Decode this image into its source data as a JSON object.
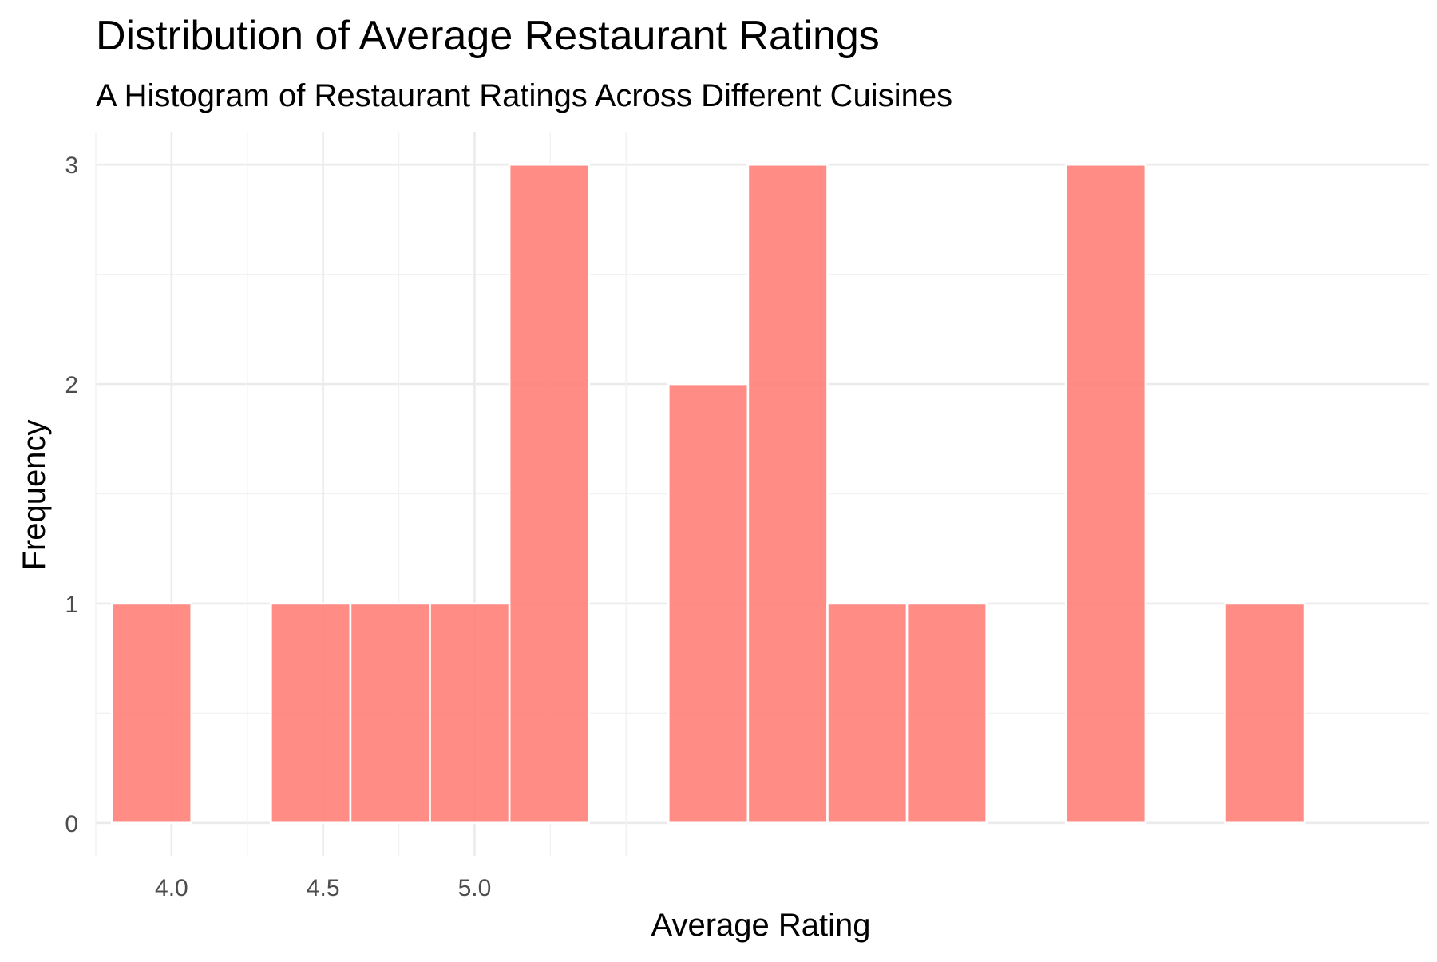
{
  "chart_data": {
    "type": "bar",
    "subtype": "histogram",
    "title": "Distribution of Average Restaurant Ratings",
    "subtitle": "A Histogram of Restaurant Ratings Across Different Cuisines",
    "xlabel": "Average Rating",
    "ylabel": "Frequency",
    "bar_color": "#FF7F78",
    "bin_width": 0.2624,
    "bins": [
      {
        "start": 3.8031,
        "end": 4.0655,
        "count": 1
      },
      {
        "start": 4.0655,
        "end": 4.3279,
        "count": 0
      },
      {
        "start": 4.3279,
        "end": 4.5903,
        "count": 1
      },
      {
        "start": 4.5903,
        "end": 4.8527,
        "count": 1
      },
      {
        "start": 4.8527,
        "end": 5.1151,
        "count": 1
      },
      {
        "start": 5.1151,
        "end": 5.3775,
        "count": 3
      },
      {
        "start": 5.3775,
        "end": 5.6399,
        "count": 0
      },
      {
        "start": 5.6399,
        "end": 5.9023,
        "count": 2
      },
      {
        "start": 5.9023,
        "end": 6.1647,
        "count": 3
      },
      {
        "start": 6.1647,
        "end": 6.4271,
        "count": 1
      },
      {
        "start": 6.4271,
        "end": 6.6895,
        "count": 1
      },
      {
        "start": 6.6895,
        "end": 6.9519,
        "count": 0
      },
      {
        "start": 6.9519,
        "end": 7.2143,
        "count": 3
      },
      {
        "start": 7.2143,
        "end": 7.4767,
        "count": 0
      },
      {
        "start": 7.4767,
        "end": 7.7391,
        "count": 1
      }
    ],
    "xlim": [
      3.75,
      8.15
    ],
    "ylim": [
      -0.15,
      3.15
    ],
    "x_ticks": [
      4.0,
      4.5,
      5.0
    ],
    "x_tick_labels": [
      "4.0",
      "4.5",
      "5.0"
    ],
    "x_major_grid": [
      3.75,
      4.0,
      4.25,
      4.5,
      4.75,
      5.0,
      5.25,
      5.5
    ],
    "y_ticks": [
      0,
      1,
      2,
      3
    ],
    "y_tick_labels": [
      "0",
      "1",
      "2",
      "3"
    ],
    "y_minor_grid": [
      0.5,
      1.5,
      2.5
    ],
    "grid": true,
    "legend": "none"
  }
}
